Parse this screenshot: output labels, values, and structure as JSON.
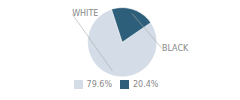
{
  "chart_data": {
    "type": "pie",
    "categories": [
      "WHITE",
      "BLACK"
    ],
    "values": [
      79.6,
      20.4
    ],
    "value_labels": [
      "79.6%",
      "20.4%"
    ],
    "colors": [
      "#d4dce8",
      "#2e5f7a"
    ],
    "legend": "bottom"
  }
}
